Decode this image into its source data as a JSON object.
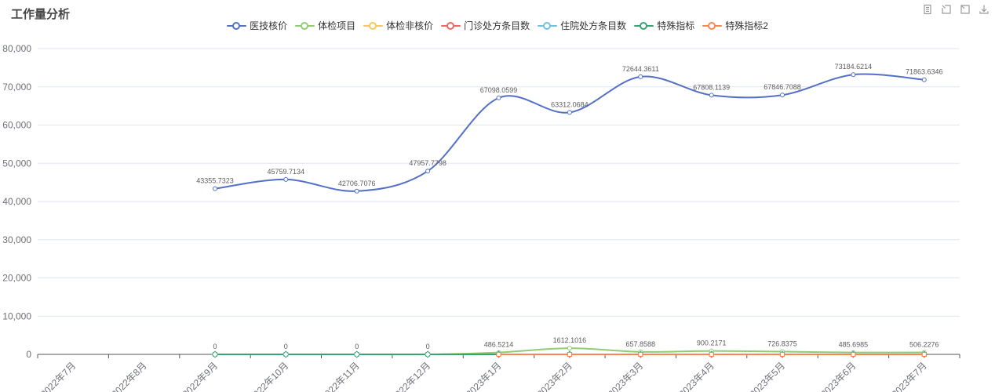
{
  "toolbox": {
    "icons": [
      "data-view-icon",
      "data-zoom-icon",
      "restore-icon",
      "save-image-icon"
    ]
  },
  "chart_data": {
    "type": "line",
    "title": "工作量分析",
    "legend_position": "top-center",
    "grid": true,
    "categories": [
      "2022年7月",
      "2022年8月",
      "2022年9月",
      "2022年10月",
      "2022年11月",
      "2022年12月",
      "2023年1月",
      "2023年2月",
      "2023年3月",
      "2023年4月",
      "2023年5月",
      "2023年6月",
      "2023年7月"
    ],
    "ylim": [
      0,
      80000
    ],
    "ytick_values": [
      0,
      10000,
      20000,
      30000,
      40000,
      50000,
      60000,
      70000,
      80000
    ],
    "ytick_labels": [
      "0",
      "10,000",
      "20,000",
      "30,000",
      "40,000",
      "50,000",
      "60,000",
      "70,000",
      "80,000"
    ],
    "axis_label_color": "#6E7079",
    "grid_line_color": "#E0E6F1",
    "data_label_color": "#5c5c5c",
    "series": [
      {
        "name": "医技核价",
        "color": "#5470c6",
        "symbol": "circle",
        "smooth": true,
        "show_labels": true,
        "values": [
          null,
          null,
          43355.7323,
          45759.7134,
          42706.7076,
          47957.7798,
          67098.0599,
          63312.0684,
          72644.3611,
          67808.1139,
          67846.7088,
          73184.6214,
          71863.6346
        ]
      },
      {
        "name": "体检项目",
        "color": "#91cc75",
        "symbol": "circle",
        "smooth": true,
        "show_labels": true,
        "values": [
          null,
          null,
          0,
          0,
          0,
          0,
          486.5214,
          1612.1016,
          657.8588,
          900.2171,
          726.8375,
          485.6985,
          506.2276
        ]
      },
      {
        "name": "体检非核价",
        "color": "#fac858",
        "symbol": "circle",
        "smooth": true,
        "show_labels": false,
        "values": [
          null,
          null,
          null,
          null,
          null,
          null,
          null,
          null,
          null,
          null,
          null,
          null,
          null
        ]
      },
      {
        "name": "门诊处方条目数",
        "color": "#ee6666",
        "symbol": "rect",
        "smooth": false,
        "show_labels": false,
        "values": [
          null,
          null,
          null,
          null,
          null,
          null,
          0,
          0,
          0,
          0,
          0,
          0,
          0
        ]
      },
      {
        "name": "住院处方条目数",
        "color": "#73c0de",
        "symbol": "rect",
        "smooth": false,
        "show_labels": false,
        "values": [
          null,
          null,
          0,
          0,
          0,
          0,
          0,
          null,
          null,
          null,
          null,
          null,
          null
        ]
      },
      {
        "name": "特殊指标",
        "color": "#3ba272",
        "symbol": "diamond",
        "smooth": false,
        "show_labels": false,
        "values": [
          null,
          null,
          0,
          0,
          0,
          0,
          0,
          0,
          0,
          0,
          0,
          0,
          0
        ]
      },
      {
        "name": "特殊指标2",
        "color": "#fc8452",
        "symbol": "rect",
        "smooth": false,
        "show_labels": false,
        "values": [
          null,
          null,
          null,
          null,
          null,
          null,
          0,
          0,
          0,
          0,
          0,
          0,
          0
        ]
      }
    ]
  }
}
